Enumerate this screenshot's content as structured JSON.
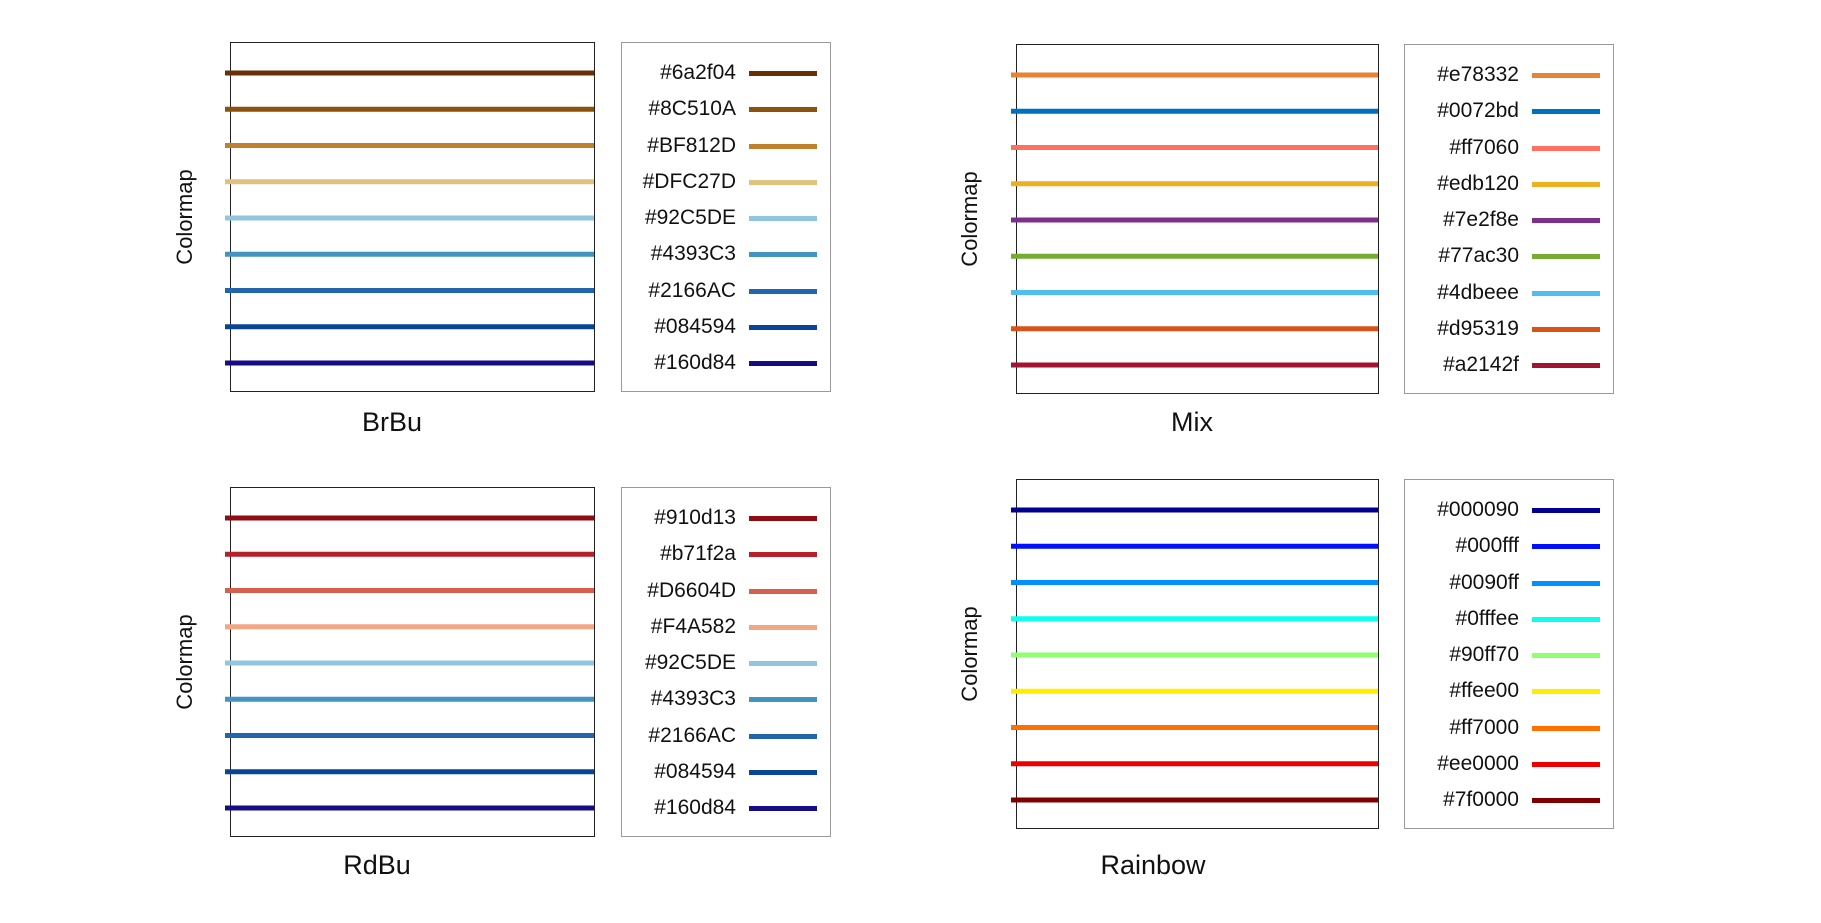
{
  "chart_data": [
    {
      "type": "line",
      "title": "BrBu",
      "ylabel": "Colormap",
      "series": [
        {
          "name": "#6a2f04",
          "color": "#6a2f04"
        },
        {
          "name": "#8C510A",
          "color": "#8C510A"
        },
        {
          "name": "#BF812D",
          "color": "#BF812D"
        },
        {
          "name": "#DFC27D",
          "color": "#DFC27D"
        },
        {
          "name": "#92C5DE",
          "color": "#92C5DE"
        },
        {
          "name": "#4393C3",
          "color": "#4393C3"
        },
        {
          "name": "#2166AC",
          "color": "#2166AC"
        },
        {
          "name": "#084594",
          "color": "#084594"
        },
        {
          "name": "#160d84",
          "color": "#160d84"
        }
      ],
      "legend": "right"
    },
    {
      "type": "line",
      "title": "Mix",
      "ylabel": "Colormap",
      "series": [
        {
          "name": "#e78332",
          "color": "#e78332"
        },
        {
          "name": "#0072bd",
          "color": "#0072bd"
        },
        {
          "name": "#ff7060",
          "color": "#ff7060"
        },
        {
          "name": "#edb120",
          "color": "#edb120"
        },
        {
          "name": "#7e2f8e",
          "color": "#7e2f8e"
        },
        {
          "name": "#77ac30",
          "color": "#77ac30"
        },
        {
          "name": "#4dbeee",
          "color": "#4dbeee"
        },
        {
          "name": "#d95319",
          "color": "#d95319"
        },
        {
          "name": "#a2142f",
          "color": "#a2142f"
        }
      ],
      "legend": "right"
    },
    {
      "type": "line",
      "title": "RdBu",
      "ylabel": "Colormap",
      "series": [
        {
          "name": "#910d13",
          "color": "#910d13"
        },
        {
          "name": "#b71f2a",
          "color": "#b71f2a"
        },
        {
          "name": "#D6604D",
          "color": "#D6604D"
        },
        {
          "name": "#F4A582",
          "color": "#F4A582"
        },
        {
          "name": "#92C5DE",
          "color": "#92C5DE"
        },
        {
          "name": "#4393C3",
          "color": "#4393C3"
        },
        {
          "name": "#2166AC",
          "color": "#2166AC"
        },
        {
          "name": "#084594",
          "color": "#084594"
        },
        {
          "name": "#160d84",
          "color": "#160d84"
        }
      ],
      "legend": "right"
    },
    {
      "type": "line",
      "title": "Rainbow",
      "ylabel": "Colormap",
      "series": [
        {
          "name": "#000090",
          "color": "#000090"
        },
        {
          "name": "#000fff",
          "color": "#000fff"
        },
        {
          "name": "#0090ff",
          "color": "#0090ff"
        },
        {
          "name": "#0fffee",
          "color": "#0fffee"
        },
        {
          "name": "#90ff70",
          "color": "#90ff70"
        },
        {
          "name": "#ffee00",
          "color": "#ffee00"
        },
        {
          "name": "#ff7000",
          "color": "#ff7000"
        },
        {
          "name": "#ee0000",
          "color": "#ee0000"
        },
        {
          "name": "#7f0000",
          "color": "#7f0000"
        }
      ],
      "legend": "right"
    }
  ]
}
